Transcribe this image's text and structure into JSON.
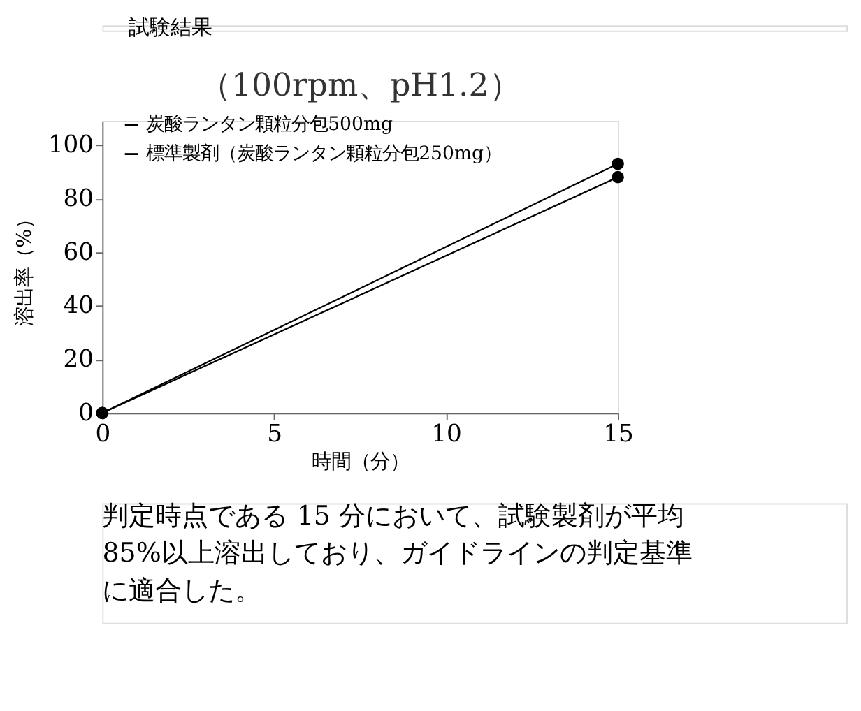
{
  "chart_data": {
    "type": "line",
    "title": "（100rpm、pH1.2）",
    "xlabel": "時間（分）",
    "ylabel": "溶出率（%）",
    "x": [
      0,
      15
    ],
    "series": [
      {
        "name": "炭酸ランタン顆粒分包500mg",
        "color": "#000000",
        "values": [
          0,
          88
        ]
      },
      {
        "name": "標準製剤（炭酸ランタン顆粒分包250mg）",
        "color": "#000000",
        "values": [
          0,
          93
        ]
      }
    ],
    "xlim": [
      0,
      15
    ],
    "xticks": [
      0,
      5,
      10,
      15
    ],
    "ylim": [
      0,
      109
    ],
    "yticks": [
      0,
      20,
      40,
      60,
      80,
      100
    ],
    "grid": false,
    "legend": "top left",
    "marker": "circle",
    "line_style": "solid",
    "annotations": [
      "試験結果",
      "判定時点である 15 分において、試験製剤が平均 85%以上溶出しており、ガイドラインの判定基準に適合した。"
    ]
  }
}
